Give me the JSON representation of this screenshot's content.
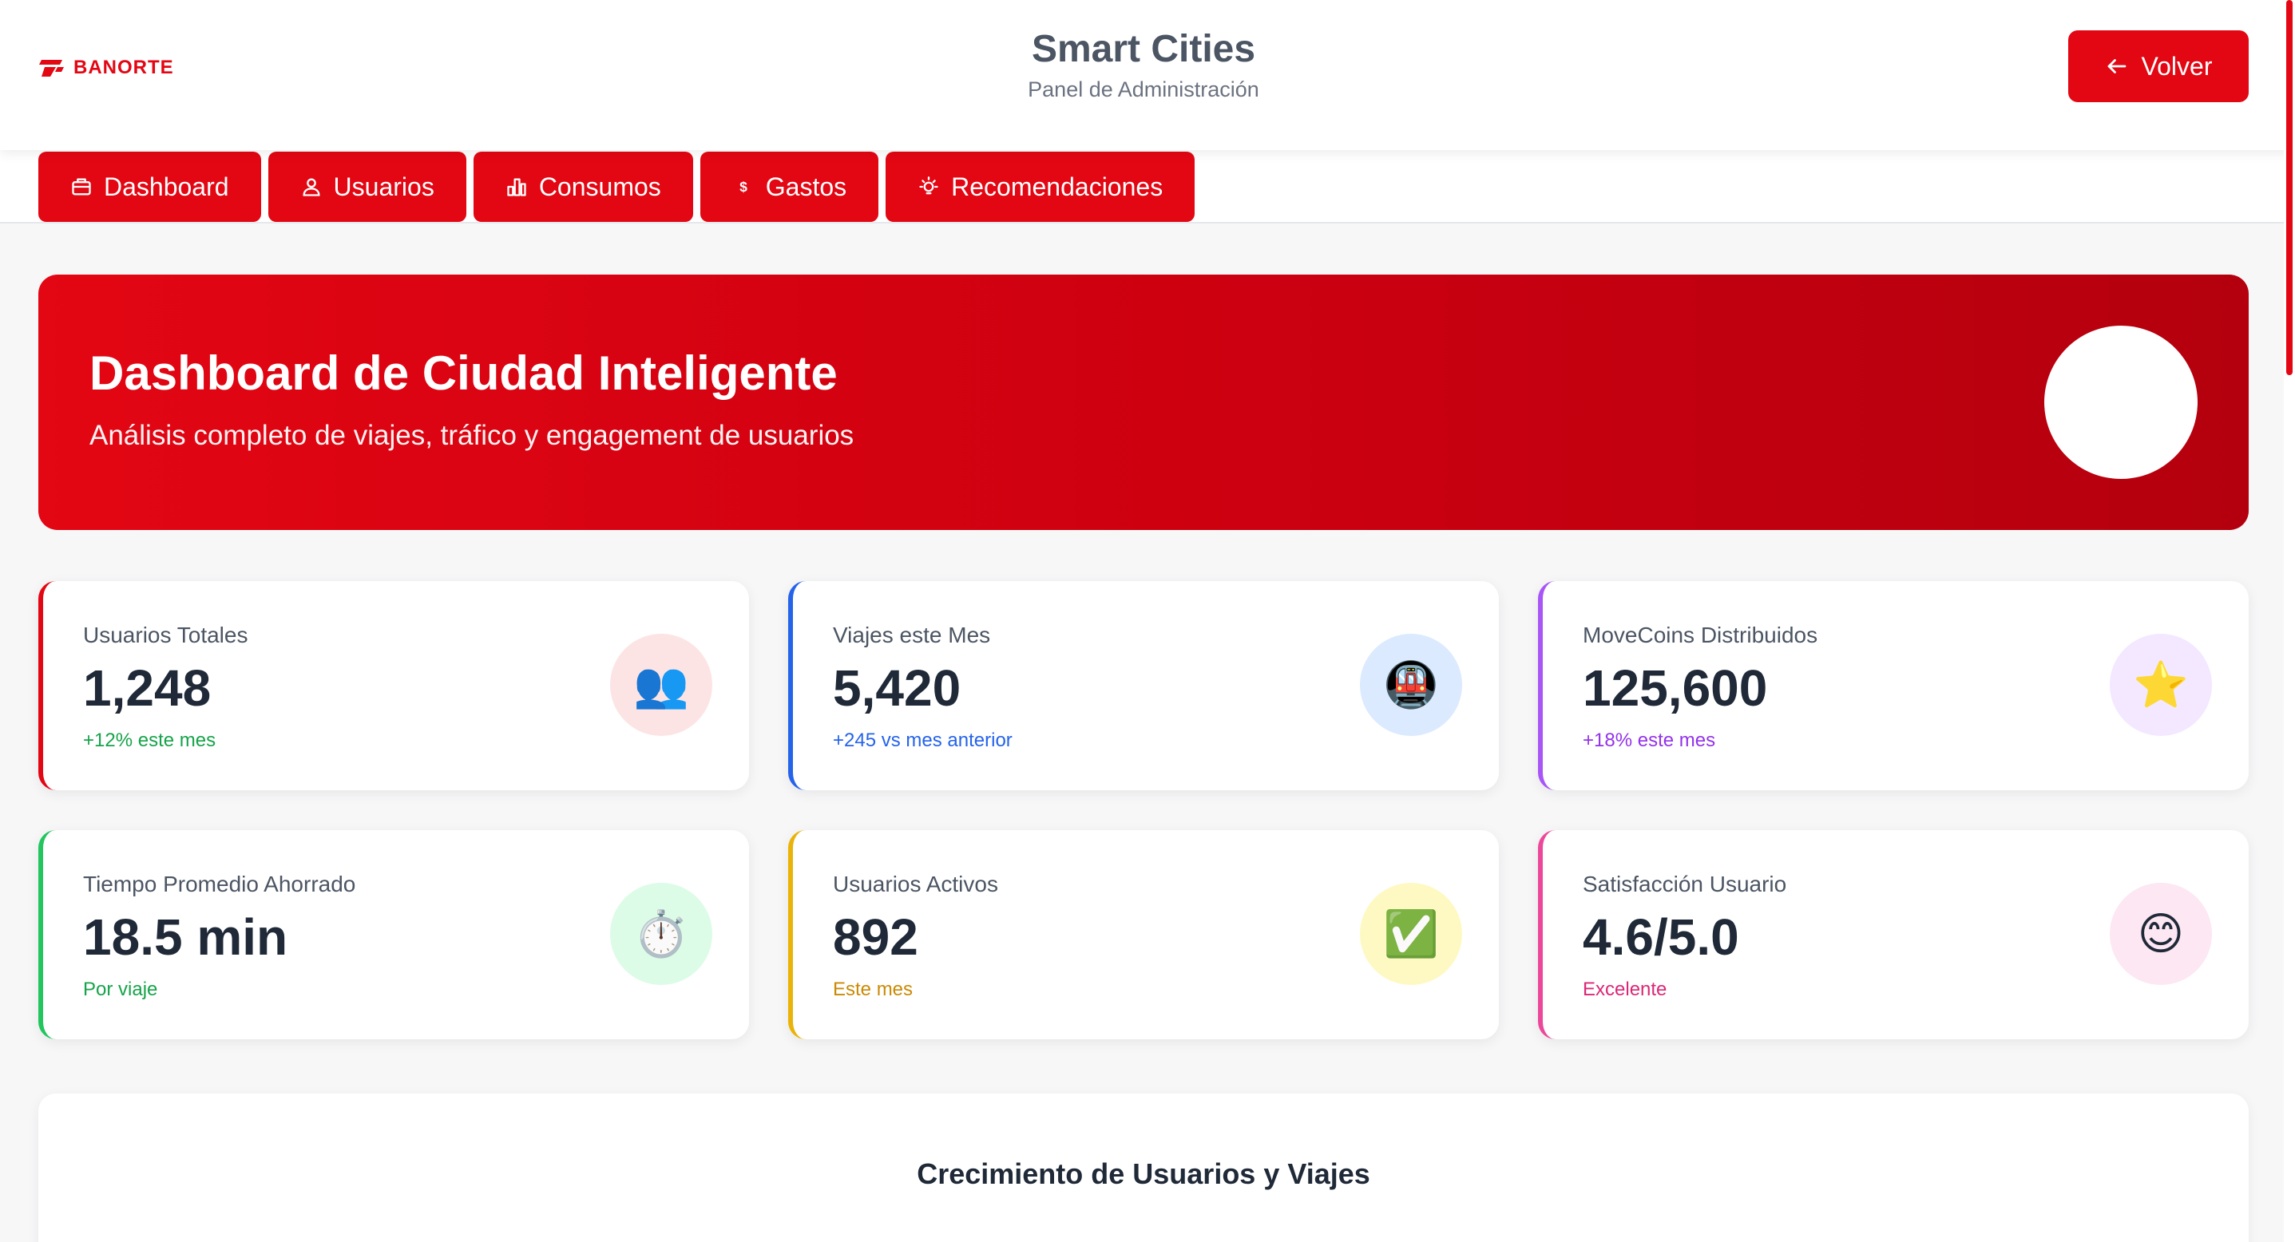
{
  "header": {
    "logo_text": "BANORTE",
    "title": "Smart Cities",
    "subtitle": "Panel de Administración",
    "back_label": "Volver"
  },
  "tabs": [
    {
      "label": "Dashboard",
      "icon": "briefcase-icon"
    },
    {
      "label": "Usuarios",
      "icon": "users-icon"
    },
    {
      "label": "Consumos",
      "icon": "bar-chart-icon"
    },
    {
      "label": "Gastos",
      "icon": "dollar-icon"
    },
    {
      "label": "Recomendaciones",
      "icon": "lightbulb-icon"
    }
  ],
  "hero": {
    "title": "Dashboard de Ciudad Inteligente",
    "subtitle": "Análisis completo de viajes, tráfico y engagement de usuarios"
  },
  "stats": [
    {
      "label": "Usuarios Totales",
      "value": "1,248",
      "note": "+12% este mes",
      "icon": "👥",
      "accent": "#e30613",
      "note_color": "#16a34a",
      "icon_bg": "#fde4e4"
    },
    {
      "label": "Viajes este Mes",
      "value": "5,420",
      "note": "+245 vs mes anterior",
      "icon": "🚇",
      "accent": "#2563eb",
      "note_color": "#2563eb",
      "icon_bg": "#dbeafe"
    },
    {
      "label": "MoveCoins Distribuidos",
      "value": "125,600",
      "note": "+18% este mes",
      "icon": "⭐",
      "accent": "#a855f7",
      "note_color": "#9333ea",
      "icon_bg": "#f3e8ff"
    },
    {
      "label": "Tiempo Promedio Ahorrado",
      "value": "18.5 min",
      "note": "Por viaje",
      "icon": "⏱️",
      "accent": "#22c55e",
      "note_color": "#16a34a",
      "icon_bg": "#dcfce7"
    },
    {
      "label": "Usuarios Activos",
      "value": "892",
      "note": "Este mes",
      "icon": "✅",
      "accent": "#eab308",
      "note_color": "#ca8a04",
      "icon_bg": "#fef9c3"
    },
    {
      "label": "Satisfacción Usuario",
      "value": "4.6/5.0",
      "note": "Excelente",
      "icon": "😊",
      "accent": "#ec4899",
      "note_color": "#db2777",
      "icon_bg": "#fce7f3"
    }
  ],
  "chart": {
    "title": "Crecimiento de Usuarios y Viajes"
  },
  "colors": {
    "brand": "#e30613"
  }
}
